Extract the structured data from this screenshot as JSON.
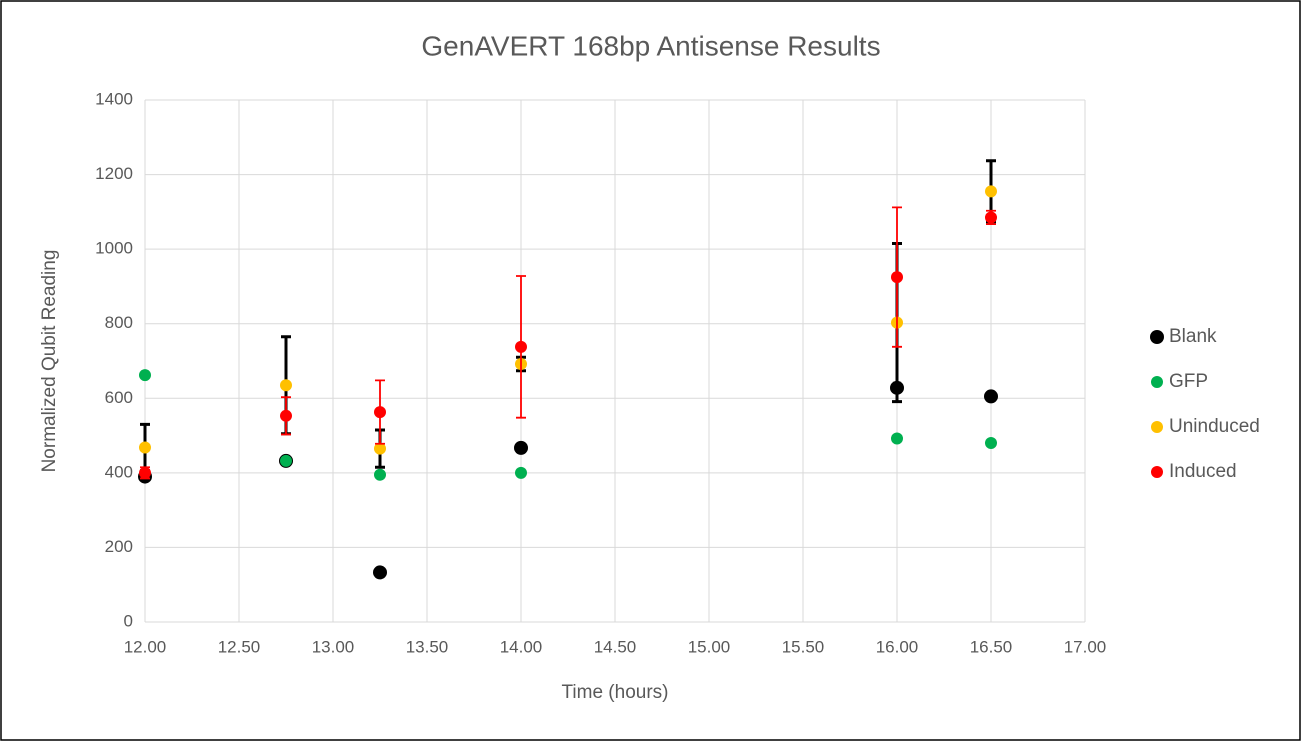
{
  "chart_data": {
    "type": "scatter",
    "title": "GenAVERT 168bp Antisense Results",
    "x_label": "Time (hours)",
    "y_label": "Normalized Qubit Reading",
    "xlim": [
      12,
      17
    ],
    "xticks": [
      {
        "value": 12,
        "label": "12.00"
      },
      {
        "value": 12.5,
        "label": "12.50"
      },
      {
        "value": 13,
        "label": "13.00"
      },
      {
        "value": 13.5,
        "label": "13.50"
      },
      {
        "value": 14,
        "label": "14.00"
      },
      {
        "value": 14.5,
        "label": "14.50"
      },
      {
        "value": 15,
        "label": "15.00"
      },
      {
        "value": 15.5,
        "label": "15.50"
      },
      {
        "value": 16,
        "label": "16.00"
      },
      {
        "value": 16.5,
        "label": "16.50"
      },
      {
        "value": 17,
        "label": "17.00"
      }
    ],
    "ylim": [
      0,
      1400
    ],
    "yticks": [
      0,
      200,
      400,
      600,
      800,
      1000,
      1200,
      1400
    ],
    "grid": true,
    "legend": "right",
    "series": [
      {
        "name": "Blank",
        "color": "#000000",
        "x": [
          12,
          12.75,
          13.25,
          14,
          16,
          16.5
        ],
        "values": [
          390,
          432,
          133,
          467,
          628,
          605
        ]
      },
      {
        "name": "GFP",
        "color": "#00b050",
        "x": [
          12,
          12.75,
          13.25,
          14,
          16,
          16.5
        ],
        "values": [
          662,
          432,
          395,
          400,
          492,
          480
        ]
      },
      {
        "name": "Uninduced",
        "color": "#ffc000",
        "x": [
          12,
          12.75,
          13.25,
          14,
          16,
          16.5
        ],
        "values": [
          468,
          635,
          465,
          692,
          803,
          1155
        ],
        "errors": [
          62,
          130,
          50,
          18,
          212,
          82
        ],
        "error_color": "#000000"
      },
      {
        "name": "Induced",
        "color": "#ff0000",
        "x": [
          12,
          12.75,
          13.25,
          14,
          16,
          16.5
        ],
        "values": [
          400,
          553,
          563,
          738,
          925,
          1085
        ],
        "errors": [
          15,
          50,
          85,
          190,
          187,
          18
        ],
        "error_color": "#ff0000"
      }
    ]
  }
}
